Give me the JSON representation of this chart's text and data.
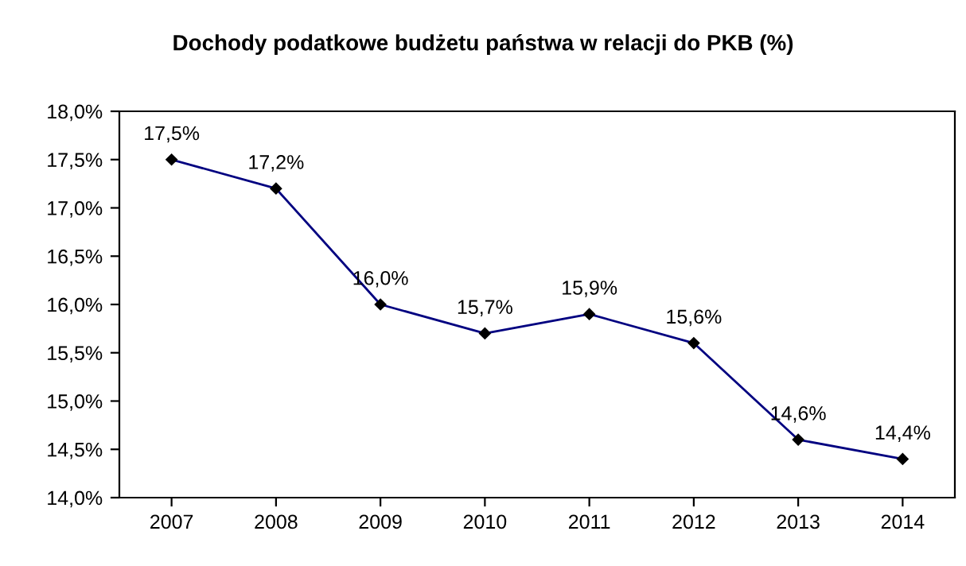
{
  "chart_data": {
    "type": "line",
    "title": "Dochody podatkowe budżetu państwa w relacji do PKB (%)",
    "categories": [
      "2007",
      "2008",
      "2009",
      "2010",
      "2011",
      "2012",
      "2013",
      "2014"
    ],
    "series": [
      {
        "color": "#000080",
        "values": [
          17.5,
          17.2,
          16.0,
          15.7,
          15.9,
          15.6,
          14.6,
          14.4
        ],
        "value_labels": [
          "17,5%",
          "17,2%",
          "16,0%",
          "15,7%",
          "15,9%",
          "15,6%",
          "14,6%",
          "14,4%"
        ]
      }
    ],
    "ylim": [
      14.0,
      18.0
    ],
    "yticks": [
      {
        "value": 14.0,
        "label": "14,0%"
      },
      {
        "value": 14.5,
        "label": "14,5%"
      },
      {
        "value": 15.0,
        "label": "15,0%"
      },
      {
        "value": 15.5,
        "label": "15,5%"
      },
      {
        "value": 16.0,
        "label": "16,0%"
      },
      {
        "value": 16.5,
        "label": "16,5%"
      },
      {
        "value": 17.0,
        "label": "17,0%"
      },
      {
        "value": 17.5,
        "label": "17,5%"
      },
      {
        "value": 18.0,
        "label": "18,0%"
      }
    ],
    "marker": "diamond",
    "line_style": "solid",
    "grid": false,
    "legend": false
  }
}
